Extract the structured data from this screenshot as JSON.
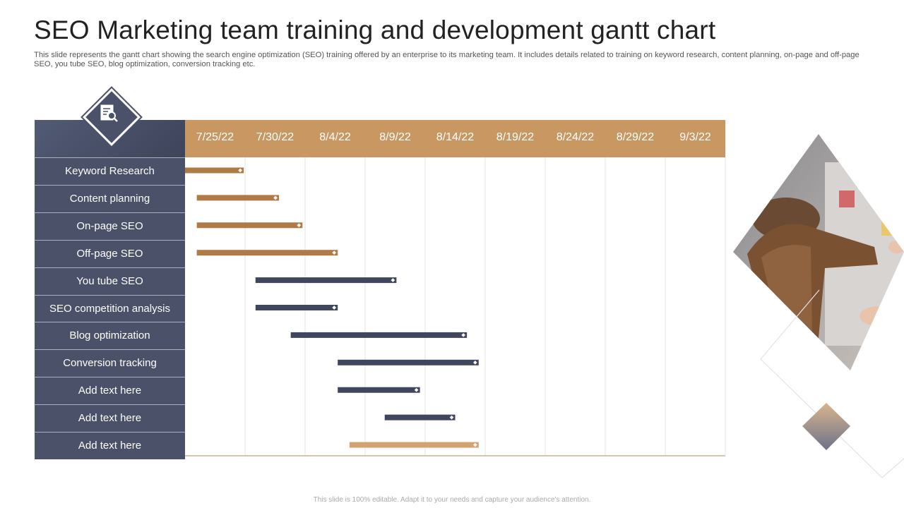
{
  "page": {
    "title": "SEO Marketing team training and development gantt chart",
    "subtitle": "This slide represents the gantt chart showing the search engine optimization (SEO) training offered by an enterprise to its marketing team. It includes details related to training on keyword research, content planning, on-page and off-page SEO, you tube SEO, blog optimization, conversion tracking etc.",
    "footer": "This slide is 100% editable. Adapt it to your needs and capture your audience's attention."
  },
  "icons": {
    "badge": "document-search-icon",
    "photo": "person-at-board-photo"
  },
  "colors": {
    "panel": "#4a5168",
    "header": "#c99761",
    "bar_brown": "#b07a47",
    "bar_navy": "#3f465d",
    "bar_tan": "#d2a271"
  },
  "chart_data": {
    "type": "gantt",
    "title": "",
    "x_axis": {
      "ticks": [
        "7/25/22",
        "7/30/22",
        "8/4/22",
        "8/9/22",
        "8/14/22",
        "8/19/22",
        "8/24/22",
        "8/29/22",
        "9/3/22"
      ],
      "range": [
        "2022-07-22",
        "2022-09-06"
      ]
    },
    "grid": true,
    "tasks": [
      {
        "name": "Keyword Research",
        "start": "2022-07-22",
        "end": "2022-07-27",
        "color": "#b07a47"
      },
      {
        "name": "Content planning",
        "start": "2022-07-23",
        "end": "2022-07-30",
        "color": "#b07a47"
      },
      {
        "name": "On-page SEO",
        "start": "2022-07-23",
        "end": "2022-08-01",
        "color": "#b07a47"
      },
      {
        "name": "Off-page SEO",
        "start": "2022-07-23",
        "end": "2022-08-04",
        "color": "#b07a47"
      },
      {
        "name": "You tube SEO",
        "start": "2022-07-28",
        "end": "2022-08-09",
        "color": "#3f465d"
      },
      {
        "name": "SEO competition analysis",
        "start": "2022-07-28",
        "end": "2022-08-04",
        "color": "#3f465d"
      },
      {
        "name": "Blog optimization",
        "start": "2022-07-31",
        "end": "2022-08-15",
        "color": "#3f465d"
      },
      {
        "name": "Conversion tracking",
        "start": "2022-08-04",
        "end": "2022-08-16",
        "color": "#3f465d"
      },
      {
        "name": "Add text here",
        "start": "2022-08-04",
        "end": "2022-08-11",
        "color": "#3f465d"
      },
      {
        "name": "Add text here",
        "start": "2022-08-08",
        "end": "2022-08-14",
        "color": "#3f465d"
      },
      {
        "name": "Add text here",
        "start": "2022-08-05",
        "end": "2022-08-16",
        "color": "#d2a271"
      }
    ]
  }
}
